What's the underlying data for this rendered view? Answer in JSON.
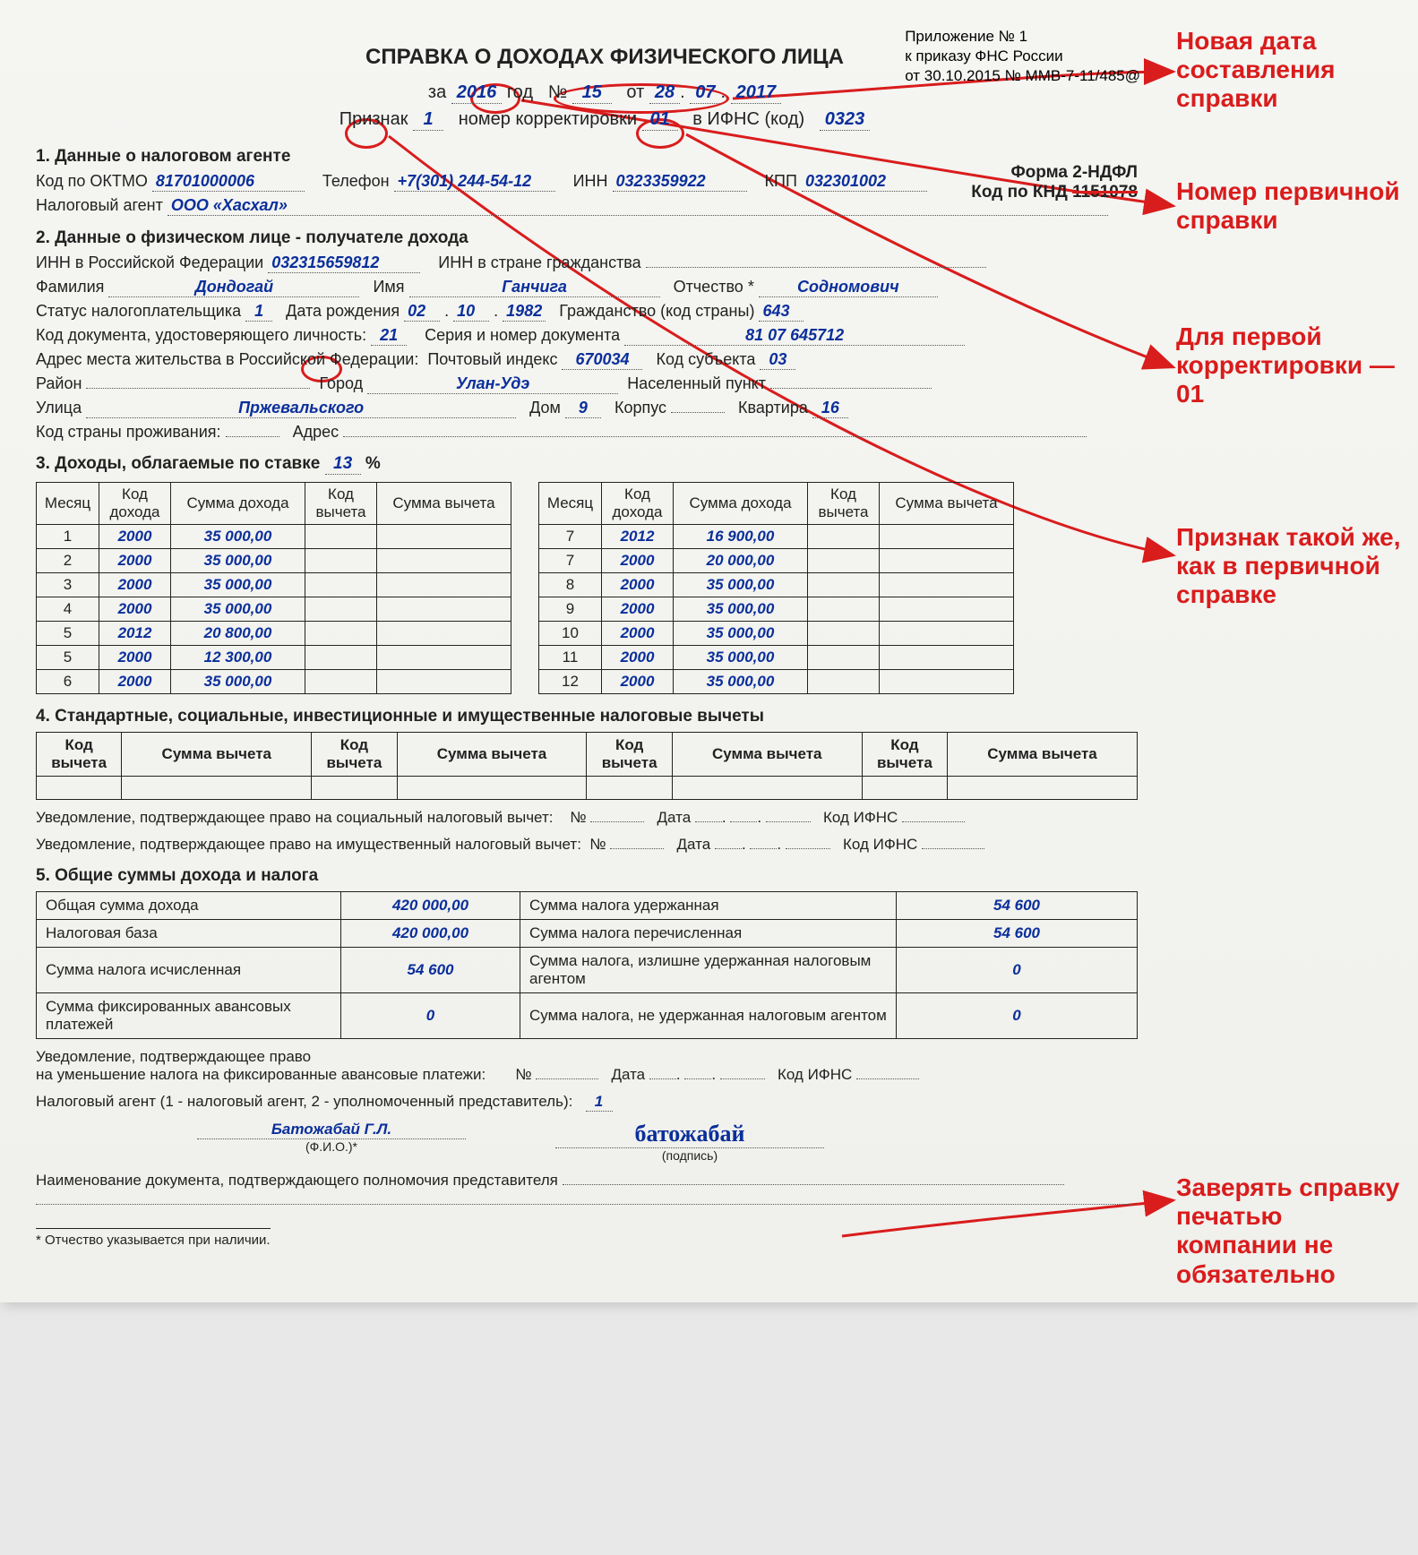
{
  "attachment": {
    "line1": "Приложение № 1",
    "line2": "к приказу ФНС России",
    "line3": "от 30.10.2015 № ММВ-7-11/485@"
  },
  "title": "СПРАВКА О ДОХОДАХ ФИЗИЧЕСКОГО ЛИЦА",
  "meta": {
    "za_label": "за",
    "year": "2016",
    "god": "год",
    "no_label": "№",
    "no": "15",
    "ot": "от",
    "date_d": "28",
    "date_m": "07",
    "date_y": "2017",
    "priznak_label": "Признак",
    "priznak": "1",
    "korr_label": "номер корректировки",
    "korr": "01",
    "ifns_label": "в ИФНС (код)",
    "ifns": "0323"
  },
  "form": {
    "line1": "Форма 2-НДФЛ",
    "line2_label": "Код по КНД",
    "knd": "1151078"
  },
  "s1": {
    "h": "1. Данные о налоговом агенте",
    "oktmo_label": "Код по ОКТМО",
    "oktmo": "81701000006",
    "tel_label": "Телефон",
    "tel": "+7(301) 244-54-12",
    "inn_label": "ИНН",
    "inn": "0323359922",
    "kpp_label": "КПП",
    "kpp": "032301002",
    "agent_label": "Налоговый агент",
    "agent": "ООО «Хасхал»"
  },
  "s2": {
    "h": "2. Данные о физическом лице - получателе дохода",
    "inn_rf_label": "ИНН в Российской Федерации",
    "inn_rf": "032315659812",
    "inn_foreign_label": "ИНН в стране гражданства",
    "fam_label": "Фамилия",
    "fam": "Дондогай",
    "name_label": "Имя",
    "name": "Ганчига",
    "patr_label": "Отчество *",
    "patr": "Содномович",
    "status_label": "Статус налогоплательщика",
    "status": "1",
    "dob_label": "Дата рождения",
    "dob_d": "02",
    "dob_m": "10",
    "dob_y": "1982",
    "citizen_label": "Гражданство (код страны)",
    "citizen": "643",
    "doc_code_label": "Код документа, удостоверяющего личность:",
    "doc_code": "21",
    "doc_ser_label": "Серия и номер документа",
    "doc_ser": "81 07 645712",
    "addr_label": "Адрес места жительства в Российской Федерации:",
    "zip_label": "Почтовый индекс",
    "zip": "670034",
    "subj_label": "Код субъекта",
    "subj": "03",
    "raion_label": "Район",
    "city_label": "Город",
    "city": "Улан-Удэ",
    "nasel_label": "Населенный пункт",
    "street_label": "Улица",
    "street": "Пржевальского",
    "house_label": "Дом",
    "house": "9",
    "korpus_label": "Корпус",
    "flat_label": "Квартира",
    "flat": "16",
    "country_label": "Код страны проживания:",
    "addr2_label": "Адрес"
  },
  "s3": {
    "h_pre": "3. Доходы, облагаемые по ставке",
    "rate": "13",
    "pct": "%",
    "th": {
      "month": "Месяц",
      "code": "Код\nдохода",
      "sum": "Сумма дохода",
      "vcode": "Код\nвычета",
      "vsum": "Сумма вычета"
    },
    "left": [
      {
        "m": "1",
        "c": "2000",
        "s": "35 000,00"
      },
      {
        "m": "2",
        "c": "2000",
        "s": "35 000,00"
      },
      {
        "m": "3",
        "c": "2000",
        "s": "35 000,00"
      },
      {
        "m": "4",
        "c": "2000",
        "s": "35 000,00"
      },
      {
        "m": "5",
        "c": "2012",
        "s": "20 800,00"
      },
      {
        "m": "5",
        "c": "2000",
        "s": "12 300,00"
      },
      {
        "m": "6",
        "c": "2000",
        "s": "35 000,00"
      }
    ],
    "right": [
      {
        "m": "7",
        "c": "2012",
        "s": "16 900,00"
      },
      {
        "m": "7",
        "c": "2000",
        "s": "20 000,00"
      },
      {
        "m": "8",
        "c": "2000",
        "s": "35 000,00"
      },
      {
        "m": "9",
        "c": "2000",
        "s": "35 000,00"
      },
      {
        "m": "10",
        "c": "2000",
        "s": "35 000,00"
      },
      {
        "m": "11",
        "c": "2000",
        "s": "35 000,00"
      },
      {
        "m": "12",
        "c": "2000",
        "s": "35 000,00"
      }
    ]
  },
  "s4": {
    "h": "4. Стандартные, социальные, инвестиционные и имущественные налоговые вычеты",
    "th_code": "Код\nвычета",
    "th_sum": "Сумма вычета",
    "uved_soc": "Уведомление, подтверждающее право на социальный налоговый вычет:",
    "uved_im": "Уведомление, подтверждающее право на имущественный налоговый вычет:",
    "no": "№",
    "date": "Дата",
    "ifns": "Код ИФНС"
  },
  "s5": {
    "h": "5. Общие суммы дохода и налога",
    "r1l": "Общая сумма дохода",
    "r1v": "420 000,00",
    "r1r": "Сумма налога удержанная",
    "r1rv": "54 600",
    "r2l": "Налоговая база",
    "r2v": "420 000,00",
    "r2r": "Сумма налога перечисленная",
    "r2rv": "54 600",
    "r3l": "Сумма налога исчисленная",
    "r3v": "54 600",
    "r3r": "Сумма налога, излишне удержанная налоговым агентом",
    "r3rv": "0",
    "r4l": "Сумма фиксированных авансовых платежей",
    "r4v": "0",
    "r4r": "Сумма налога, не удержанная налоговым агентом",
    "r4rv": "0"
  },
  "footer": {
    "uved_fix1": "Уведомление, подтверждающее право",
    "uved_fix2": "на уменьшение налога на фиксированные авансовые платежи:",
    "no": "№",
    "date": "Дата",
    "ifns": "Код ИФНС",
    "agent_type_label": "Налоговый агент (1 - налоговый агент, 2 - уполномоченный представитель):",
    "agent_type": "1",
    "fio": "Батожабай Г.Л.",
    "fio_under": "(Ф.И.О.)*",
    "sign": "батожабай",
    "sign_under": "(подпись)",
    "doc_confirm": "Наименование документа, подтверждающего полномочия представителя",
    "footnote": "* Отчество указывается при наличии."
  },
  "annotations": {
    "a1": "Новая дата составления справки",
    "a2": "Номер пер­вичной справки",
    "a3": "Для первой корректи­ровки — 01",
    "a4": "Признак такой же, как в пер­вичной справке",
    "a5": "Заверять справку печатью компании не обяза­тельно"
  },
  "colors": {
    "accent": "#d91c1c",
    "blue": "#0a2f9b"
  }
}
